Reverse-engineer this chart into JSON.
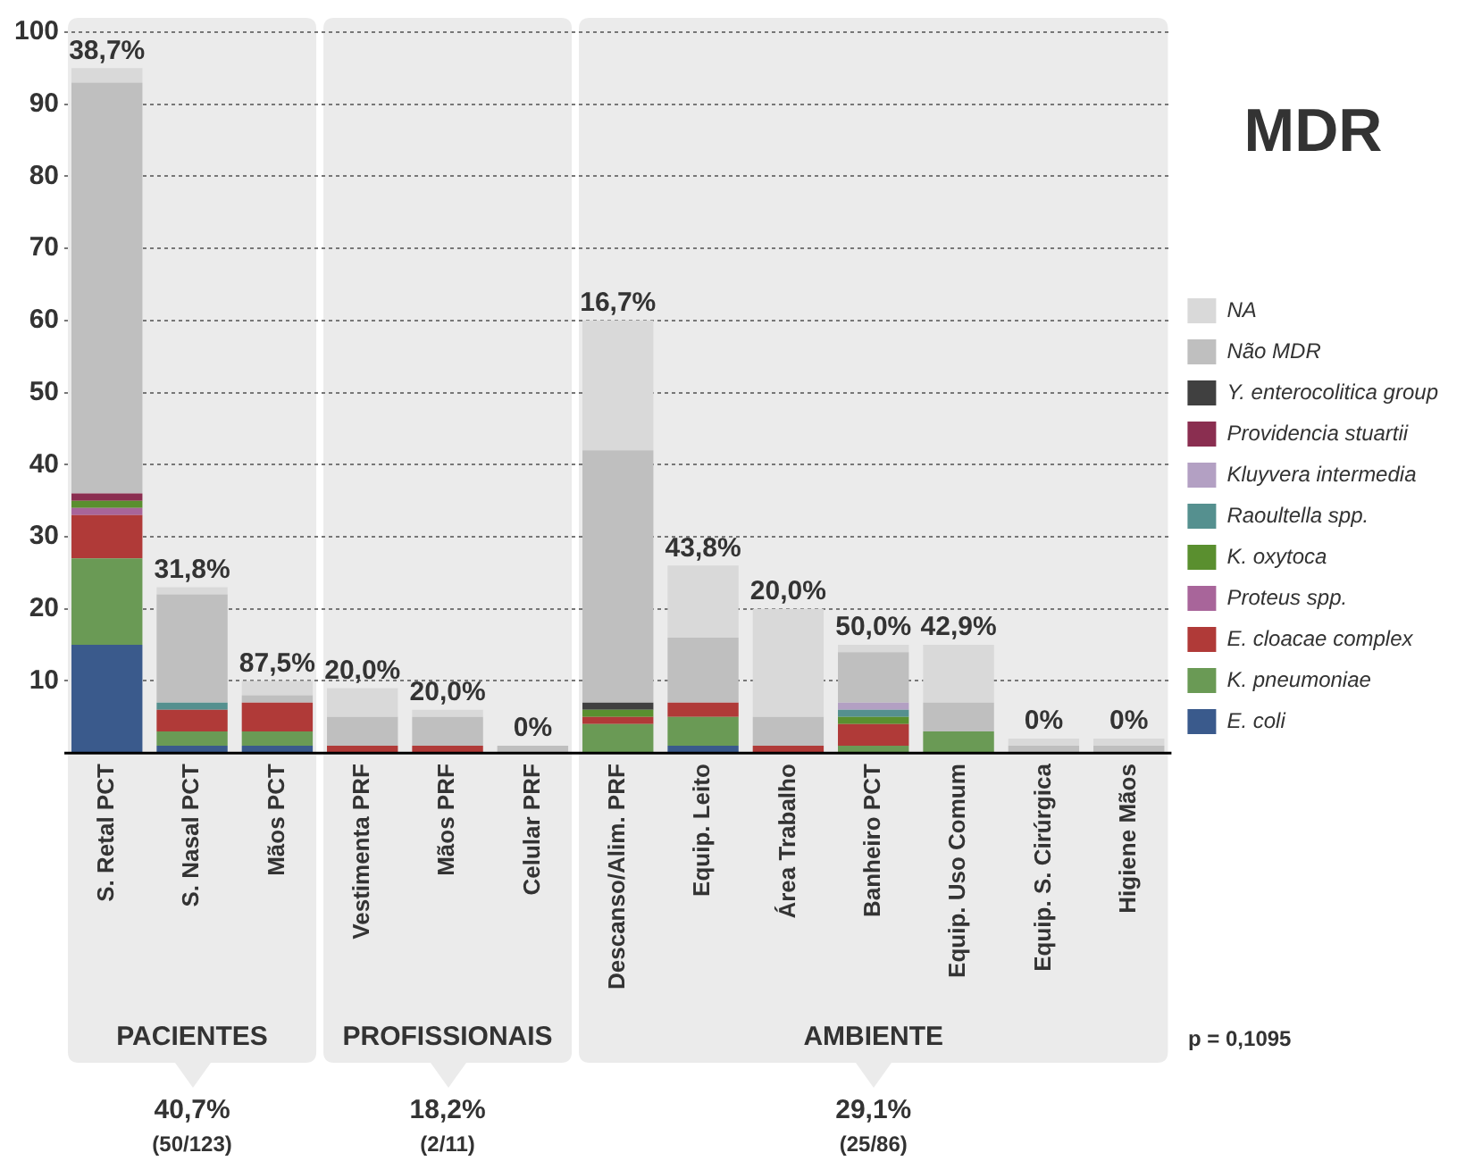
{
  "chart_data": {
    "type": "bar",
    "title": "MDR",
    "stacked": true,
    "legend": "right",
    "grid": "y",
    "categories": [
      "S. Retal PCT",
      "S. Nasal PCT",
      "Mãos PCT",
      "Vestimenta PRF",
      "Mãos PRF",
      "Celular PRF",
      "Descanso/Alim. PRF",
      "Equip. Leito",
      "Área Trabalho",
      "Banheiro PCT",
      "Equip. Uso Comum",
      "Equip. S. Cirúrgica",
      "Higiene Mãos"
    ],
    "ylim": [
      0,
      100
    ],
    "yticks": [
      10,
      20,
      30,
      40,
      50,
      60,
      70,
      80,
      90,
      100
    ],
    "bands": [
      {
        "axis": "x",
        "from": "S. Retal PCT",
        "to": "Mãos PCT",
        "label": "PACIENTES",
        "color": "#ebebeb"
      },
      {
        "axis": "x",
        "from": "Vestimenta PRF",
        "to": "Celular PRF",
        "label": "PROFISSIONAIS",
        "color": "#ebebeb"
      },
      {
        "axis": "x",
        "from": "Descanso/Alim. PRF",
        "to": "Higiene Mãos",
        "label": "AMBIENTE",
        "color": "#ebebeb"
      }
    ],
    "series": [
      {
        "name": "E. coli",
        "color": "#3a5a8c",
        "values": [
          15,
          1,
          1,
          0,
          0,
          0,
          0,
          1,
          0,
          0,
          0,
          0,
          0
        ]
      },
      {
        "name": "K. pneumoniae",
        "color": "#6a9a55",
        "values": [
          12,
          2,
          2,
          0,
          0,
          0,
          4,
          4,
          0,
          1,
          3,
          0,
          0
        ]
      },
      {
        "name": "E. cloacae complex",
        "color": "#b03a38",
        "values": [
          6,
          3,
          4,
          1,
          1,
          0,
          1,
          2,
          1,
          3,
          0,
          0,
          0
        ]
      },
      {
        "name": "Proteus spp.",
        "color": "#a8659a",
        "values": [
          1,
          0,
          0,
          0,
          0,
          0,
          0,
          0,
          0,
          0,
          0,
          0,
          0
        ]
      },
      {
        "name": "K. oxytoca",
        "color": "#5a8f2f",
        "values": [
          1,
          0,
          0,
          0,
          0,
          0,
          1,
          0,
          0,
          1,
          0,
          0,
          0
        ]
      },
      {
        "name": "Raoultella spp.",
        "color": "#55908f",
        "values": [
          0,
          1,
          0,
          0,
          0,
          0,
          0,
          0,
          0,
          1,
          0,
          0,
          0
        ]
      },
      {
        "name": "Kluyvera intermedia",
        "color": "#b3a0c3",
        "values": [
          0,
          0,
          0,
          0,
          0,
          0,
          0,
          0,
          0,
          1,
          0,
          0,
          0
        ]
      },
      {
        "name": "Providencia stuartii",
        "color": "#8a2e50",
        "values": [
          1,
          0,
          0,
          0,
          0,
          0,
          0,
          0,
          0,
          0,
          0,
          0,
          0
        ]
      },
      {
        "name": "Y. enterocolitica group",
        "color": "#404040",
        "values": [
          0,
          0,
          0,
          0,
          0,
          0,
          1,
          0,
          0,
          0,
          0,
          0,
          0
        ]
      },
      {
        "name": "Não MDR",
        "color": "#bfbfbf",
        "values": [
          57,
          15,
          1,
          4,
          4,
          1,
          35,
          9,
          4,
          7,
          4,
          1,
          1
        ]
      },
      {
        "name": "NA",
        "color": "#d9d9d9",
        "values": [
          2,
          1,
          2,
          4,
          1,
          0,
          18,
          10,
          15,
          1,
          8,
          1,
          1
        ]
      }
    ],
    "annotations": [
      {
        "text": "38,7%",
        "x": "S. Retal PCT",
        "y": 95
      },
      {
        "text": "31,8%",
        "x": "S. Nasal PCT",
        "y": 23
      },
      {
        "text": "87,5%",
        "x": "Mãos PCT",
        "y": 10
      },
      {
        "text": "20,0%",
        "x": "Vestimenta PRF",
        "y": 9
      },
      {
        "text": "20,0%",
        "x": "Mãos PRF",
        "y": 6
      },
      {
        "text": "0%",
        "x": "Celular PRF",
        "y": 1
      },
      {
        "text": "16,7%",
        "x": "Descanso/Alim. PRF",
        "y": 60
      },
      {
        "text": "43,8%",
        "x": "Equip. Leito",
        "y": 26
      },
      {
        "text": "20,0%",
        "x": "Área Trabalho",
        "y": 20
      },
      {
        "text": "50,0%",
        "x": "Banheiro PCT",
        "y": 15
      },
      {
        "text": "42,9%",
        "x": "Equip. Uso Comum",
        "y": 15
      },
      {
        "text": "0%",
        "x": "Equip. S. Cirúrgica",
        "y": 2
      },
      {
        "text": "0%",
        "x": "Higiene Mãos",
        "y": 2
      },
      "40,7%",
      "(50/123)",
      "18,2%",
      "(2/11)",
      "29,1%",
      "(25/86)",
      "p = 0,1095"
    ]
  }
}
